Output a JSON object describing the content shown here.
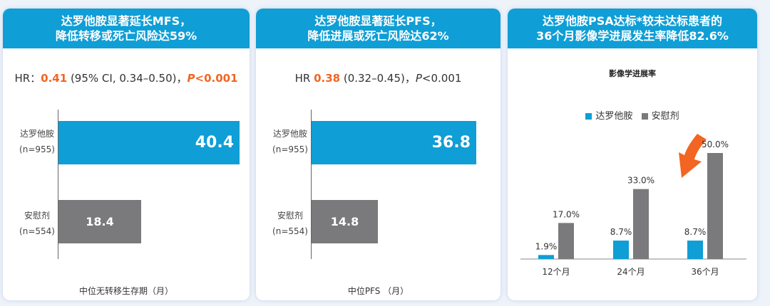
{
  "panels": [
    {
      "title_line1": "达罗他胺显著延长MFS，",
      "title_line2": "降低转移或死亡风险达59%",
      "hr": {
        "prefix": "HR：",
        "value": "0.41",
        "middle": " (95% CI, 0.34–0.50)，",
        "p_italic": "P",
        "p_rest": "<0.001"
      },
      "xlabel": "中位无转移生存期（月）"
    },
    {
      "title_line1": "达罗他胺显著延长PFS，",
      "title_line2": "降低进展或死亡风险达62%",
      "hr": {
        "prefix": "HR ",
        "value": "0.38",
        "middle": " (0.32–0.45)，",
        "p_italic": "P",
        "p_rest": "<0.001"
      },
      "xlabel": "中位PFS （月）"
    },
    {
      "title_line1": "达罗他胺PSA达标*较未达标患者的",
      "title_line2": "36个月影像学进展发生率降低82.6%",
      "subtitle": "影像学进展率",
      "legend": [
        "达罗他胺",
        "安慰剂"
      ]
    }
  ],
  "colors": {
    "blue": "#0f9ed5",
    "gray": "#7a7a7c",
    "orange": "#f26522",
    "header": "#0f9ed5"
  },
  "chart_data": [
    {
      "type": "bar",
      "orientation": "horizontal",
      "categories": [
        [
          "达罗他胺",
          "(n=955)"
        ],
        [
          "安慰剂",
          "(n=554)"
        ]
      ],
      "values": [
        40.4,
        18.4
      ],
      "labels": [
        "40.4",
        "18.4"
      ],
      "xlabel": "中位无转移生存期（月）"
    },
    {
      "type": "bar",
      "orientation": "horizontal",
      "categories": [
        [
          "达罗他胺",
          "(n=955)"
        ],
        [
          "安慰剂",
          "(n=554)"
        ]
      ],
      "values": [
        36.8,
        14.8
      ],
      "labels": [
        "36.8",
        "14.8"
      ],
      "xlabel": "中位PFS （月）"
    },
    {
      "type": "bar",
      "title": "影像学进展率",
      "categories": [
        "12个月",
        "24个月",
        "36个月"
      ],
      "series": [
        {
          "name": "达罗他胺",
          "values": [
            1.9,
            8.7,
            8.7
          ],
          "labels": [
            "1.9%",
            "8.7%",
            "8.7%"
          ]
        },
        {
          "name": "安慰剂",
          "values": [
            17.0,
            33.0,
            50.0
          ],
          "labels": [
            "17.0%",
            "33.0%",
            "50.0%"
          ]
        }
      ],
      "ylim": [
        0,
        50
      ],
      "legend_position": "top"
    }
  ]
}
